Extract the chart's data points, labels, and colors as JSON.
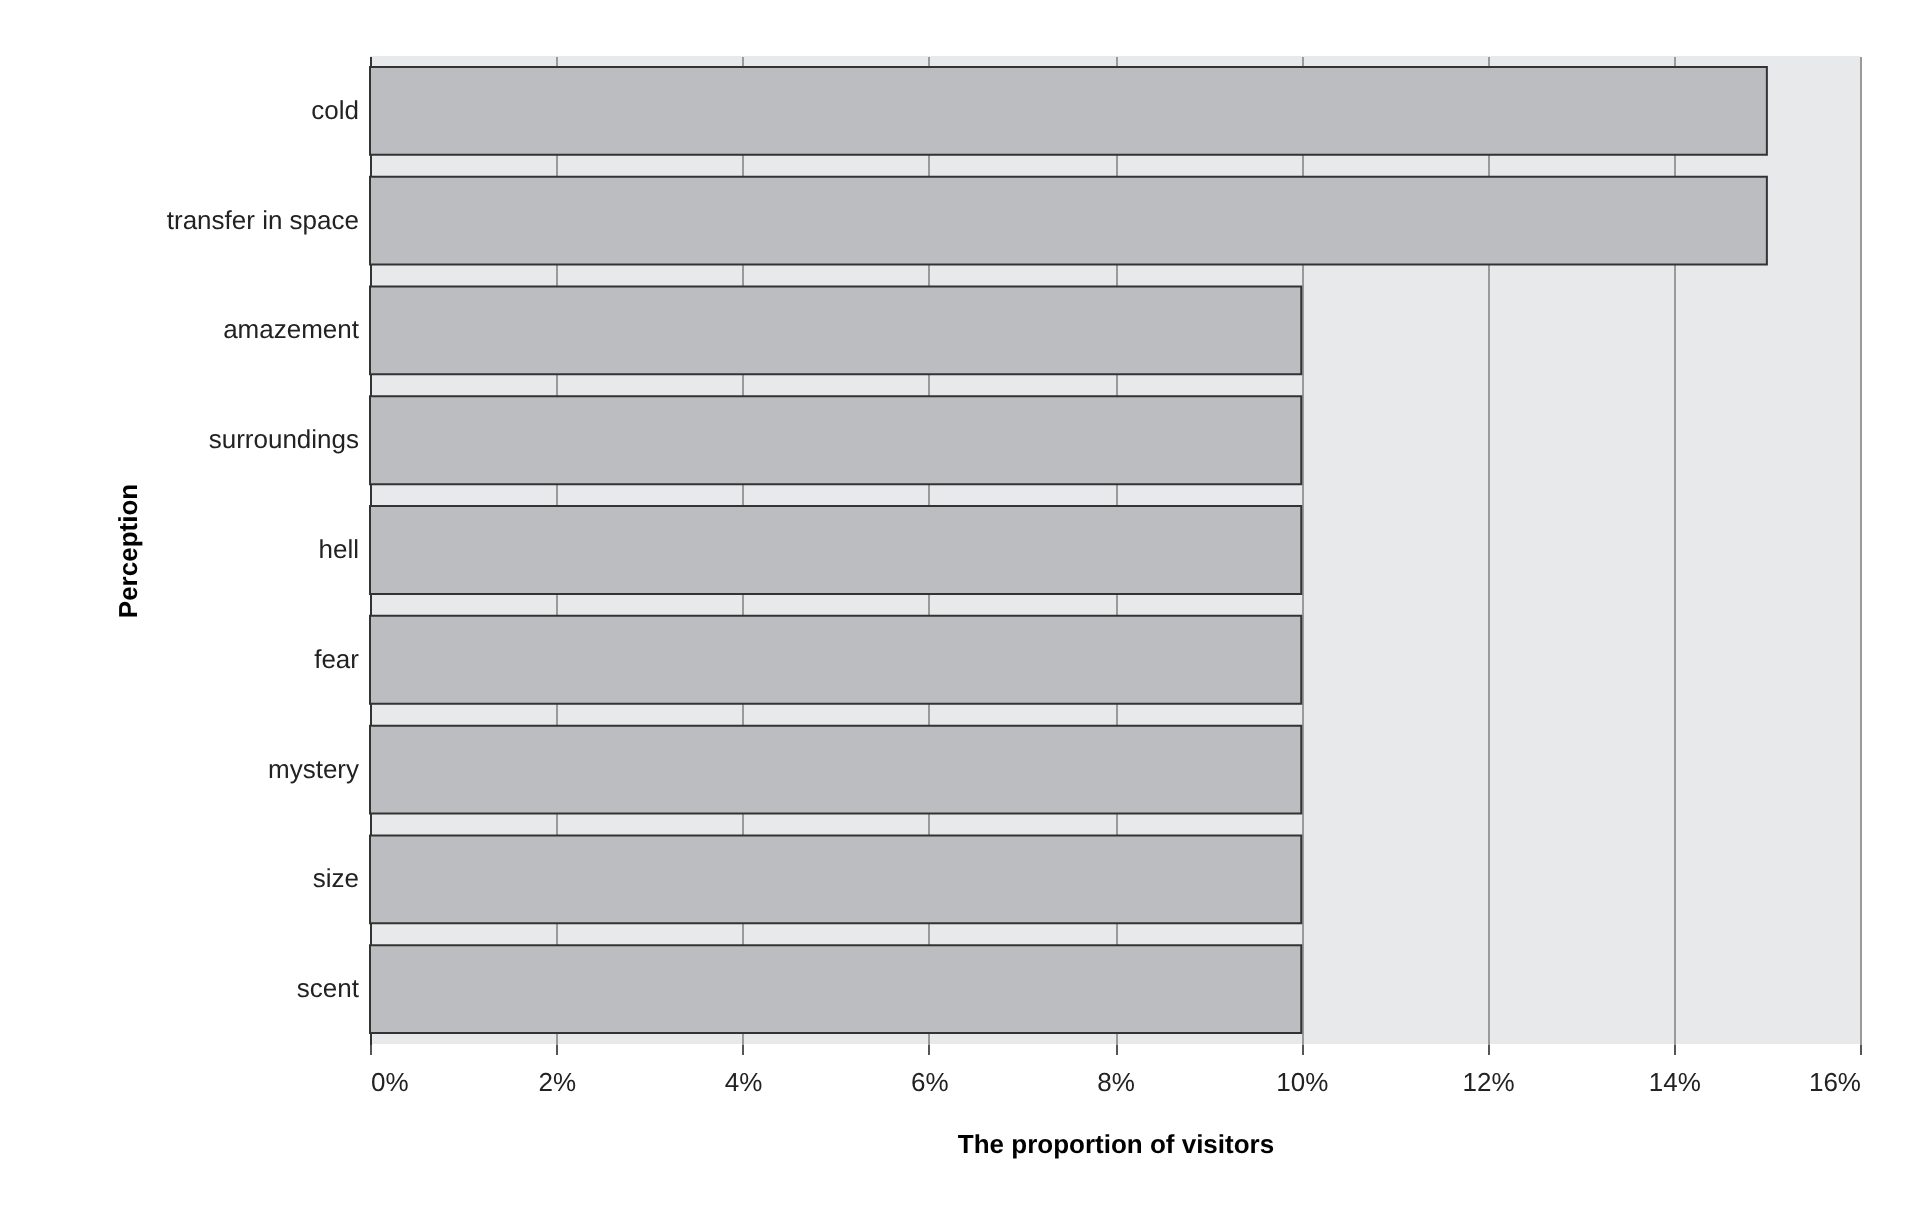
{
  "chart_data": {
    "type": "bar",
    "orientation": "horizontal",
    "xlabel": "The proportion of visitors",
    "ylabel": "Perception",
    "categories": [
      "cold",
      "transfer in space",
      "amazement",
      "surroundings",
      "hell",
      "fear",
      "mystery",
      "size",
      "scent"
    ],
    "values": [
      15,
      15,
      10,
      10,
      10,
      10,
      10,
      10,
      10
    ],
    "color": "#bcbdc0",
    "xlim": [
      0,
      16
    ],
    "xticks": [
      {
        "value": 0,
        "label": "0%"
      },
      {
        "value": 2,
        "label": "2%"
      },
      {
        "value": 4,
        "label": "4%"
      },
      {
        "value": 6,
        "label": "6%"
      },
      {
        "value": 8,
        "label": "8%"
      },
      {
        "value": 10,
        "label": "10%"
      },
      {
        "value": 12,
        "label": "12%"
      },
      {
        "value": 14,
        "label": "14%"
      },
      {
        "value": 16,
        "label": "16%"
      }
    ],
    "grid": "x"
  }
}
